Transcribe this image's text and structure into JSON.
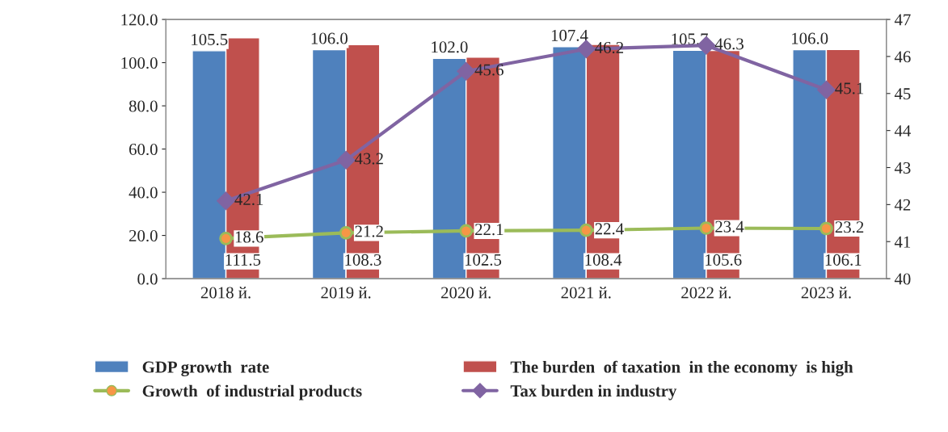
{
  "chart_data": {
    "type": "bar",
    "categories": [
      "2018 й.",
      "2019 й.",
      "2020 й.",
      "2021 й.",
      "2022 й.",
      "2023 й."
    ],
    "series": [
      {
        "name": "GDP growth  rate",
        "color": "#4f81bd",
        "values": [
          105.5,
          106.0,
          102.0,
          107.4,
          105.7,
          106.0
        ],
        "value_labels": [
          "105.5",
          "106.0",
          "102.0",
          "107.4",
          "105.7",
          "106.0"
        ]
      },
      {
        "name": "The burden  of taxation  in the economy  is high",
        "color": "#c0504d",
        "values": [
          111.5,
          108.3,
          102.5,
          108.4,
          105.6,
          106.1
        ],
        "value_labels": [
          "111.5",
          "108.3",
          "102.5",
          "108.4",
          "105.6",
          "106.1"
        ]
      },
      {
        "name": "Growth  of industrial products",
        "type": "line",
        "color": "#9bbb59",
        "marker": "circle",
        "values": [
          18.6,
          21.2,
          22.1,
          22.4,
          23.4,
          23.2
        ],
        "value_labels": [
          "18.6",
          "21.2",
          "22.1",
          "22.4",
          "23.4",
          "23.2"
        ]
      },
      {
        "name": "Tax burden in industry",
        "type": "line",
        "axis": "y2",
        "color": "#8064a2",
        "marker": "diamond",
        "values": [
          42.1,
          43.2,
          45.6,
          46.2,
          46.3,
          45.1
        ],
        "value_labels": [
          "42.1",
          "43.2",
          "45.6",
          "46.2",
          "46.3",
          "45.1"
        ]
      }
    ],
    "ylim": [
      0,
      120
    ],
    "yticks": [
      {
        "value": 0,
        "label": "0.0"
      },
      {
        "value": 20,
        "label": "20.0"
      },
      {
        "value": 40,
        "label": "40.0"
      },
      {
        "value": 60,
        "label": "60.0"
      },
      {
        "value": 80,
        "label": "80.0"
      },
      {
        "value": 100,
        "label": "100.0"
      },
      {
        "value": 120,
        "label": "120.0"
      }
    ],
    "y2lim": [
      40,
      47
    ],
    "y2ticks": [
      40,
      41,
      42,
      43,
      44,
      45,
      46,
      47
    ],
    "grid": false,
    "legend": "bottom"
  }
}
